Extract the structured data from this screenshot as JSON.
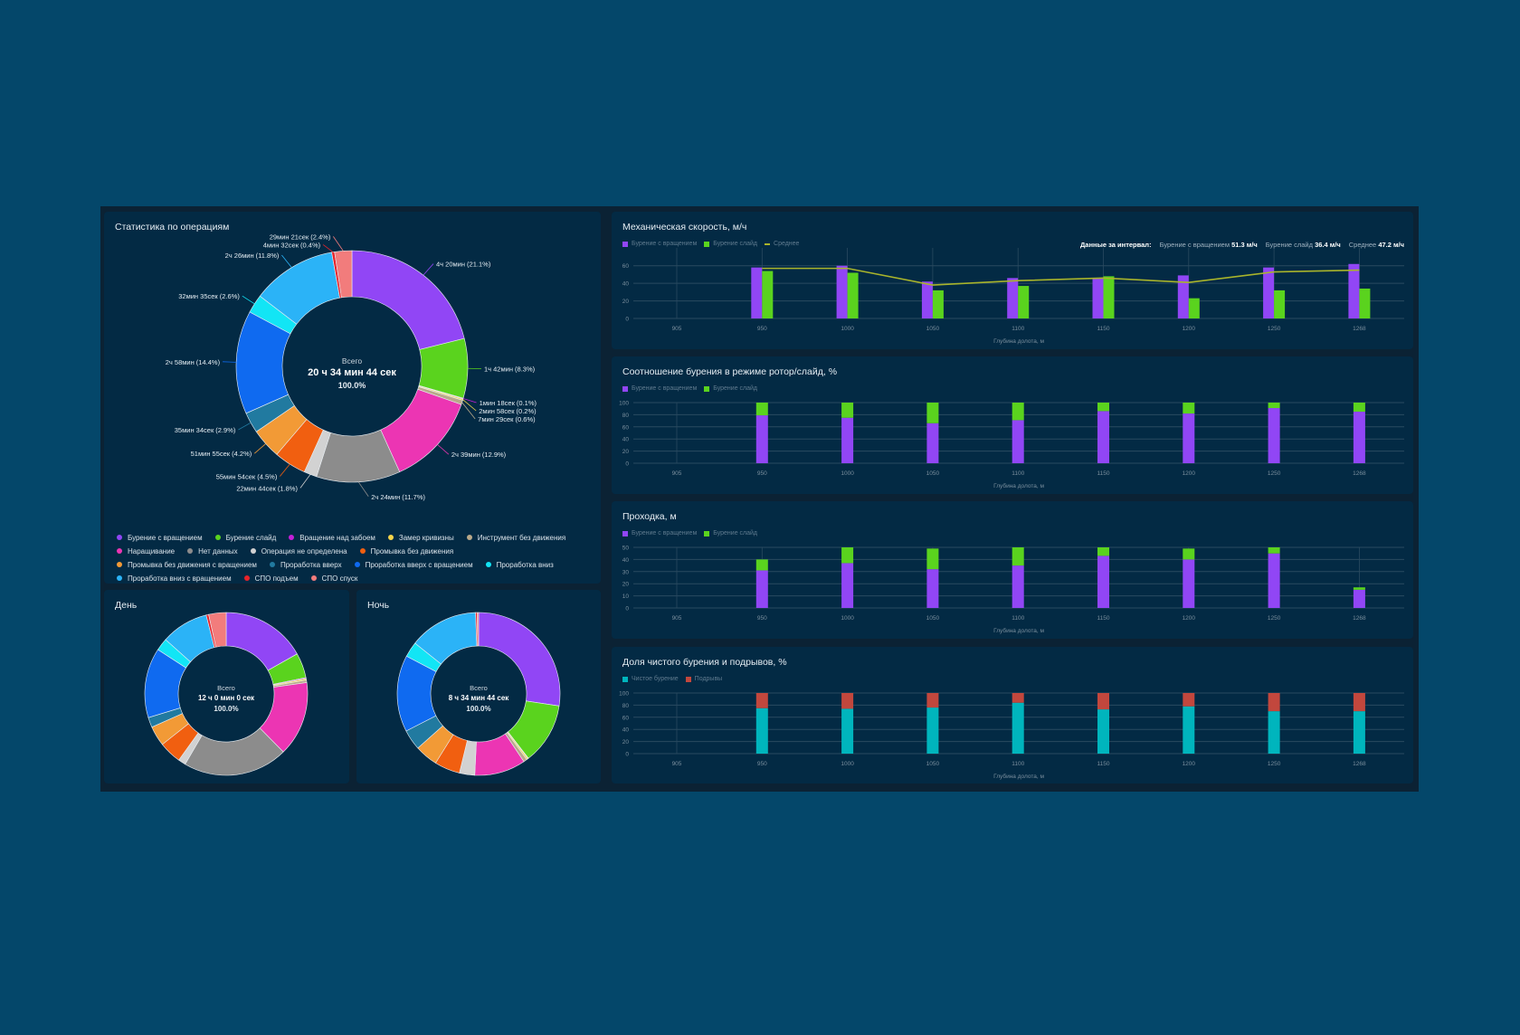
{
  "colors": {
    "page_bg": "#04476a",
    "dashboard_bg": "#0b2234",
    "card_bg": "#032a44",
    "rotation": "#9146f5",
    "slide": "#5ad31e",
    "average": "#a9b42b",
    "clean": "#00b5bd",
    "breaks": "#c2473d"
  },
  "operations": {
    "title": "Статистика по операциям",
    "center": {
      "caption": "Всего",
      "total": "20 ч 34 мин 44 сек",
      "percent": "100.0%"
    },
    "items": [
      {
        "name": "Бурение с вращением",
        "color": "#9146f5",
        "percent": 21.1,
        "label": "4ч 20мин (21.1%)"
      },
      {
        "name": "Бурение слайд",
        "color": "#5ad31e",
        "percent": 8.3,
        "label": "1ч 42мин (8.3%)"
      },
      {
        "name": "Вращение над забоем",
        "color": "#c41fd8",
        "percent": 0.1,
        "label": "1мин 18сек (0.1%)"
      },
      {
        "name": "Замер кривизны",
        "color": "#f5d44a",
        "percent": 0.2,
        "label": "2мин 58сек (0.2%)"
      },
      {
        "name": "Инструмент без движения",
        "color": "#b9a98a",
        "percent": 0.6,
        "label": "7мин 29сек (0.6%)"
      },
      {
        "name": "Наращивание",
        "color": "#ec35b3",
        "percent": 12.9,
        "label": "2ч 39мин (12.9%)"
      },
      {
        "name": "Нет данных",
        "color": "#8c8c8c",
        "percent": 11.7,
        "label": "2ч 24мин (11.7%)"
      },
      {
        "name": "Операция не определена",
        "color": "#d2d2d2",
        "percent": 1.8,
        "label": "22мин 44сек (1.8%)"
      },
      {
        "name": "Промывка без движения",
        "color": "#f15f10",
        "percent": 4.5,
        "label": "55мин 54сек (4.5%)"
      },
      {
        "name": "Промывка без движения с вращением",
        "color": "#f29a36",
        "percent": 4.2,
        "label": "51мин 55сек (4.2%)"
      },
      {
        "name": "Проработка вверх",
        "color": "#217aa0",
        "percent": 2.9,
        "label": "35мин 34сек (2.9%)"
      },
      {
        "name": "Проработка вверх с вращением",
        "color": "#0f6af0",
        "percent": 14.4,
        "label": "2ч 58мин (14.4%)"
      },
      {
        "name": "Проработка вниз",
        "color": "#12e5f5",
        "percent": 2.6,
        "label": "32мин 35сек (2.6%)"
      },
      {
        "name": "Проработка вниз с вращением",
        "color": "#2bb3f7",
        "percent": 11.8,
        "label": "2ч 26мин (11.8%)"
      },
      {
        "name": "СПО подъем",
        "color": "#e8232a",
        "percent": 0.4,
        "label": "4мин 32сек (0.4%)"
      },
      {
        "name": "СПО спуск",
        "color": "#f27c7c",
        "percent": 2.4,
        "label": "29мин 21сек (2.4%)"
      }
    ]
  },
  "day": {
    "title": "День",
    "center": {
      "caption": "Всего",
      "total": "12 ч 0 мин 0 сек",
      "percent": "100.0%"
    },
    "percents": [
      17,
      5,
      0.2,
      0.3,
      0.5,
      15,
      21,
      1.5,
      4.5,
      4,
      2,
      14,
      2.5,
      9.5,
      0.5,
      3.5
    ]
  },
  "night": {
    "title": "Ночь",
    "center": {
      "caption": "Всего",
      "total": "8 ч 34 мин 44 сек",
      "percent": "100.0%"
    },
    "percents": [
      27,
      12,
      0.1,
      0.3,
      0.7,
      10,
      0,
      3,
      5,
      4.5,
      4,
      15,
      3,
      13.5,
      0.3,
      0.3
    ]
  },
  "chart_data": [
    {
      "type": "bar",
      "title": "Механическая скорость, м/ч",
      "categories": [
        "905",
        "950",
        "1000",
        "1050",
        "1100",
        "1150",
        "1200",
        "1250",
        "1268"
      ],
      "xlabel": "Глубина долота, м",
      "ylim": [
        0,
        70
      ],
      "yticks": [
        0,
        20,
        40,
        60
      ],
      "grid": true,
      "stacked": false,
      "legend": "top-left",
      "series": [
        {
          "name": "Бурение с вращением",
          "kind": "bar",
          "color": "#9146f5",
          "values": [
            null,
            58,
            60,
            42,
            46,
            46,
            49,
            58,
            62
          ]
        },
        {
          "name": "Бурение слайд",
          "kind": "bar",
          "color": "#5ad31e",
          "values": [
            null,
            54,
            52,
            32,
            37,
            48,
            23,
            32,
            34
          ]
        },
        {
          "name": "Среднее",
          "kind": "line",
          "color": "#a9b42b",
          "values": [
            null,
            57,
            57,
            38,
            43,
            46,
            41,
            53,
            55
          ]
        }
      ],
      "interval": {
        "caption": "Данные за интервал:",
        "items": [
          {
            "label": "Бурение с вращением",
            "value": "51.3 м/ч"
          },
          {
            "label": "Бурение слайд",
            "value": "36.4 м/ч"
          },
          {
            "label": "Среднее",
            "value": "47.2 м/ч"
          }
        ]
      }
    },
    {
      "type": "bar",
      "title": "Соотношение бурения в режиме ротор/слайд, %",
      "categories": [
        "905",
        "950",
        "1000",
        "1050",
        "1100",
        "1150",
        "1200",
        "1250",
        "1268"
      ],
      "xlabel": "Глубина долота, м",
      "ylim": [
        0,
        100
      ],
      "yticks": [
        0,
        20,
        40,
        60,
        80,
        100
      ],
      "grid": true,
      "stacked": true,
      "legend": "top-left",
      "series": [
        {
          "name": "Бурение с вращением",
          "kind": "bar",
          "color": "#9146f5",
          "values": [
            null,
            79,
            75,
            66,
            71,
            86,
            82,
            91,
            85
          ]
        },
        {
          "name": "Бурение слайд",
          "kind": "bar",
          "color": "#5ad31e",
          "values": [
            null,
            21,
            25,
            34,
            29,
            14,
            18,
            9,
            15
          ]
        }
      ]
    },
    {
      "type": "bar",
      "title": "Проходка, м",
      "categories": [
        "905",
        "950",
        "1000",
        "1050",
        "1100",
        "1150",
        "1200",
        "1250",
        "1268"
      ],
      "xlabel": "Глубина долота, м",
      "ylim": [
        0,
        50
      ],
      "yticks": [
        0,
        10,
        20,
        30,
        40,
        50
      ],
      "grid": true,
      "stacked": true,
      "legend": "top-left",
      "series": [
        {
          "name": "Бурение с вращением",
          "kind": "bar",
          "color": "#9146f5",
          "values": [
            null,
            31,
            37,
            32,
            35,
            43,
            40,
            45,
            15
          ]
        },
        {
          "name": "Бурение слайд",
          "kind": "bar",
          "color": "#5ad31e",
          "values": [
            null,
            9,
            13,
            17,
            15,
            7,
            9,
            5,
            2
          ]
        }
      ]
    },
    {
      "type": "bar",
      "title": "Доля чистого бурения и подрывов, %",
      "categories": [
        "905",
        "950",
        "1000",
        "1050",
        "1100",
        "1150",
        "1200",
        "1250",
        "1268"
      ],
      "xlabel": "Глубина долота, м",
      "ylim": [
        0,
        100
      ],
      "yticks": [
        0,
        20,
        40,
        60,
        80,
        100
      ],
      "grid": true,
      "stacked": true,
      "legend": "top-left",
      "series": [
        {
          "name": "Чистое бурение",
          "kind": "bar",
          "color": "#00b5bd",
          "values": [
            null,
            75,
            74,
            76,
            84,
            73,
            78,
            70,
            70
          ]
        },
        {
          "name": "Подрывы",
          "kind": "bar",
          "color": "#c2473d",
          "values": [
            null,
            25,
            26,
            24,
            16,
            27,
            22,
            30,
            30
          ]
        }
      ]
    }
  ]
}
